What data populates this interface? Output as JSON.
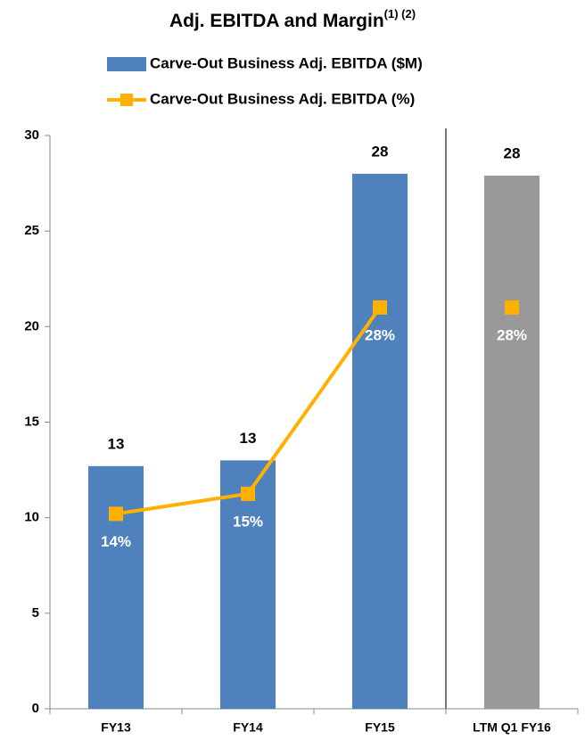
{
  "chart_data": {
    "type": "bar",
    "title": "Adj. EBITDA and Margin",
    "title_superscript": "(1) (2)",
    "categories": [
      "FY13",
      "FY14",
      "FY15",
      "LTM Q1 FY16"
    ],
    "series": [
      {
        "name": "Carve-Out Business Adj. EBITDA ($M)",
        "type": "bar",
        "color": "#4f81bd",
        "colors": [
          "#4f81bd",
          "#4f81bd",
          "#4f81bd",
          "#999999"
        ],
        "values": [
          12.7,
          13.0,
          28.0,
          27.9
        ],
        "value_labels": [
          "13",
          "13",
          "28",
          "28"
        ]
      },
      {
        "name": "Carve-Out Business Adj. EBITDA (%)",
        "type": "line",
        "axis": "y2",
        "color": "#ffb000",
        "values": [
          13.6,
          15,
          28,
          28
        ],
        "value_labels": [
          "14%",
          "15%",
          "28%",
          "28%"
        ]
      }
    ],
    "ylim": [
      0,
      30
    ],
    "yticks": [
      0,
      5,
      10,
      15,
      20,
      25,
      30
    ],
    "y2lim": [
      0,
      40
    ],
    "divider_before": 3,
    "legend": "top"
  }
}
